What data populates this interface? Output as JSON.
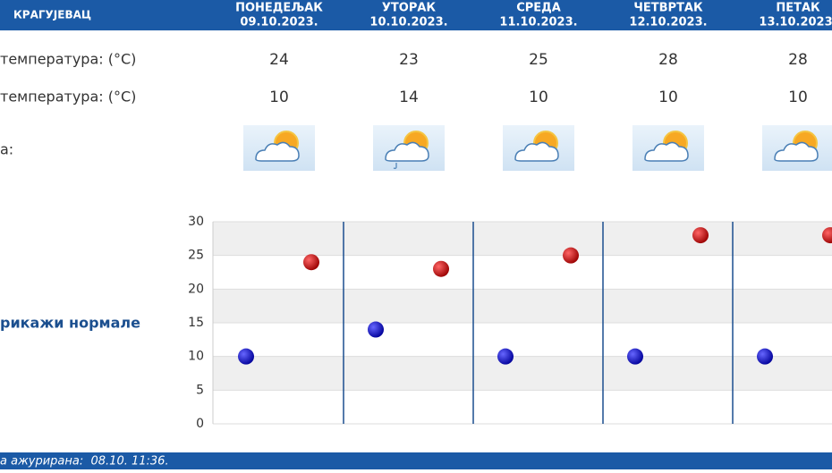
{
  "header": {
    "city": "КРАГУЈЕВАЦ"
  },
  "days": [
    {
      "name": "ПОНЕДЕЉАК",
      "date": "09.10.2023.",
      "max": 24,
      "min": 10
    },
    {
      "name": "УТОРАК",
      "date": "10.10.2023.",
      "max": 23,
      "min": 14
    },
    {
      "name": "СРЕДА",
      "date": "11.10.2023.",
      "max": 25,
      "min": 10
    },
    {
      "name": "ЧЕТВРТАК",
      "date": "12.10.2023.",
      "max": 28,
      "min": 10
    },
    {
      "name": "ПЕТАК",
      "date": "13.10.2023.",
      "max": 28,
      "min": 10
    }
  ],
  "rows": {
    "max_label": "температура: (°C)",
    "min_label": "температура: (°C)",
    "weather_label": "а:"
  },
  "normals_link": "рикажи нормале",
  "chart": {
    "ylim": [
      0,
      30
    ],
    "yticks": [
      0,
      5,
      10,
      15,
      20,
      25,
      30
    ]
  },
  "footer": "а ажурирана:  08.10. 11:36."
}
